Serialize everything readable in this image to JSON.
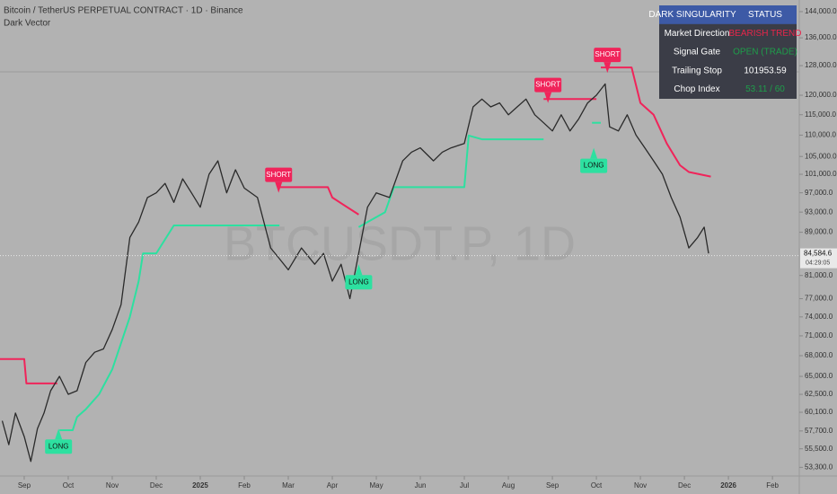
{
  "chart_data": {
    "type": "line",
    "title": "Bitcoin / TetherUS PERPETUAL CONTRACT · 1D · Binance",
    "subtitle": "Dark Vector",
    "watermark": "BTCUSDT.P, 1D",
    "log_scale": true,
    "grid": false,
    "xlim": [
      -0.55,
      17.61
    ],
    "xticks": [
      {
        "value": 0,
        "label": "Sep"
      },
      {
        "value": 1,
        "label": "Oct"
      },
      {
        "value": 2,
        "label": "Nov"
      },
      {
        "value": 3,
        "label": "Dec"
      },
      {
        "value": 4,
        "label": "2025"
      },
      {
        "value": 5,
        "label": "Feb"
      },
      {
        "value": 6,
        "label": "Mar"
      },
      {
        "value": 7,
        "label": "Apr"
      },
      {
        "value": 8,
        "label": "May"
      },
      {
        "value": 9,
        "label": "Jun"
      },
      {
        "value": 10,
        "label": "Jul"
      },
      {
        "value": 11,
        "label": "Aug"
      },
      {
        "value": 12,
        "label": "Sep"
      },
      {
        "value": 13,
        "label": "Oct"
      },
      {
        "value": 14,
        "label": "Nov"
      },
      {
        "value": 15,
        "label": "Dec"
      },
      {
        "value": 16,
        "label": "2026"
      },
      {
        "value": 17,
        "label": "Feb"
      }
    ],
    "ylim": [
      52300,
      147700
    ],
    "yticks": [
      {
        "value": 144000,
        "label": "144,000.0"
      },
      {
        "value": 136000,
        "label": "136,000.0"
      },
      {
        "value": 128000,
        "label": "128,000.0"
      },
      {
        "value": 120000,
        "label": "120,000.0"
      },
      {
        "value": 115000,
        "label": "115,000.0"
      },
      {
        "value": 110000,
        "label": "110,000.0"
      },
      {
        "value": 105000,
        "label": "105,000.0"
      },
      {
        "value": 101000,
        "label": "101,000.0"
      },
      {
        "value": 97000,
        "label": "97,000.0"
      },
      {
        "value": 93000,
        "label": "93,000.0"
      },
      {
        "value": 89000,
        "label": "89,000.0"
      },
      {
        "value": 81000,
        "label": "81,000.0"
      },
      {
        "value": 77000,
        "label": "77,000.0"
      },
      {
        "value": 74000,
        "label": "74,000.0"
      },
      {
        "value": 71000,
        "label": "71,000.0"
      },
      {
        "value": 68000,
        "label": "68,000.0"
      },
      {
        "value": 65000,
        "label": "65,000.0"
      },
      {
        "value": 62500,
        "label": "62,500.0"
      },
      {
        "value": 60100,
        "label": "60,100.0"
      },
      {
        "value": 57700,
        "label": "57,700.0"
      },
      {
        "value": 55500,
        "label": "55,500.0"
      },
      {
        "value": 53300,
        "label": "53,300.0"
      }
    ],
    "last_price": {
      "value": 84584.6,
      "label": "84,584.6"
    },
    "countdown": "04:29:05",
    "price": {
      "color": "#2a2a2a",
      "x": [
        -0.5,
        -0.35,
        -0.2,
        0,
        0.15,
        0.3,
        0.45,
        0.6,
        0.8,
        1,
        1.2,
        1.4,
        1.6,
        1.8,
        2,
        2.2,
        2.4,
        2.6,
        2.8,
        3,
        3.2,
        3.4,
        3.6,
        3.8,
        4,
        4.2,
        4.4,
        4.6,
        4.8,
        5,
        5.3,
        5.6,
        5.8,
        6,
        6.3,
        6.6,
        6.8,
        7,
        7.2,
        7.4,
        7.6,
        7.8,
        8,
        8.3,
        8.6,
        8.8,
        9,
        9.3,
        9.5,
        9.7,
        10,
        10.2,
        10.4,
        10.6,
        10.8,
        11,
        11.2,
        11.4,
        11.6,
        11.8,
        12,
        12.2,
        12.4,
        12.6,
        12.8,
        13,
        13.2,
        13.3,
        13.5,
        13.7,
        13.9,
        14.1,
        14.3,
        14.5,
        14.7,
        14.9,
        15.1,
        15.3,
        15.45,
        15.55
      ],
      "values": [
        59000,
        56000,
        60000,
        57000,
        54000,
        58000,
        60000,
        63000,
        65000,
        62500,
        63000,
        67000,
        68500,
        69000,
        72000,
        76000,
        88000,
        91000,
        96000,
        97000,
        99000,
        95000,
        100000,
        97000,
        94000,
        101000,
        104000,
        97000,
        102000,
        98000,
        96000,
        86000,
        84000,
        82000,
        86000,
        83000,
        85000,
        80000,
        83000,
        77000,
        85000,
        94000,
        97000,
        96000,
        104000,
        106000,
        107000,
        104000,
        106000,
        107000,
        108000,
        117000,
        119000,
        117000,
        118000,
        115000,
        117000,
        119000,
        115000,
        113000,
        111000,
        115000,
        111000,
        114000,
        118000,
        120000,
        123000,
        112000,
        111000,
        115000,
        110000,
        107000,
        104000,
        101000,
        96000,
        92000,
        86000,
        88000,
        90000,
        85000
      ]
    },
    "stops": [
      {
        "color": "#f0245a",
        "x": [
          -0.55,
          0,
          0.05,
          0.75
        ],
        "values": [
          67500,
          67500,
          64000,
          64000
        ]
      },
      {
        "color": "#2de0a0",
        "x": [
          0.8,
          1.1,
          1.2,
          1.4,
          1.7,
          2,
          2.4,
          2.6,
          2.7,
          3,
          3.4,
          5.8
        ],
        "values": [
          57800,
          57800,
          59500,
          60500,
          62500,
          66000,
          74000,
          80000,
          85000,
          85000,
          90340,
          90340
        ]
      },
      {
        "color": "#f0245a",
        "x": [
          5.8,
          6.9,
          7,
          7.6
        ],
        "values": [
          98200,
          98200,
          96000,
          92500
        ]
      },
      {
        "color": "#2de0a0",
        "x": [
          7.6,
          7.8,
          8.2,
          8.4,
          10,
          10.1,
          10.4,
          11.8
        ],
        "values": [
          90000,
          91000,
          93000,
          98200,
          98200,
          109900,
          109000,
          109000
        ]
      },
      {
        "color": "#f0245a",
        "x": [
          11.8,
          12.9,
          13
        ],
        "values": [
          119000,
          119000,
          119000
        ]
      },
      {
        "color": "#2de0a0",
        "x": [
          12.9,
          13.1
        ],
        "values": [
          113000,
          113000
        ]
      },
      {
        "color": "#f0245a",
        "x": [
          13.1,
          13.3,
          13.8,
          14,
          14.3,
          14.6,
          14.9,
          15.1,
          15.6
        ],
        "values": [
          127500,
          127500,
          127500,
          118000,
          115000,
          108000,
          103000,
          101500,
          100500
        ]
      }
    ],
    "signals": [
      {
        "label": "LONG",
        "x": 0.78,
        "value": 58000,
        "color": "#2de0a0"
      },
      {
        "label": "SHORT",
        "x": 5.78,
        "value": 97000,
        "color": "#f0245a"
      },
      {
        "label": "LONG",
        "x": 7.6,
        "value": 83000,
        "color": "#2de0a0"
      },
      {
        "label": "SHORT",
        "x": 11.9,
        "value": 118000,
        "color": "#f0245a"
      },
      {
        "label": "LONG",
        "x": 12.94,
        "value": 107000,
        "color": "#2de0a0"
      },
      {
        "label": "SHORT",
        "x": 13.25,
        "value": 126000,
        "color": "#f0245a"
      }
    ]
  },
  "panel": {
    "header": [
      "DARK SINGULARITY",
      "STATUS"
    ],
    "rows": [
      {
        "label": "Market Direction",
        "status": "BEARISH TREND",
        "color": "#e8254a"
      },
      {
        "label": "Signal Gate",
        "status": "OPEN (TRADE)",
        "color": "#1e9e4a"
      },
      {
        "label": "Trailing Stop",
        "status": "101953.59",
        "color": "#ffffff"
      },
      {
        "label": "Chop Index",
        "status": "53.11 / 60",
        "color": "#1e9e4a"
      }
    ]
  }
}
